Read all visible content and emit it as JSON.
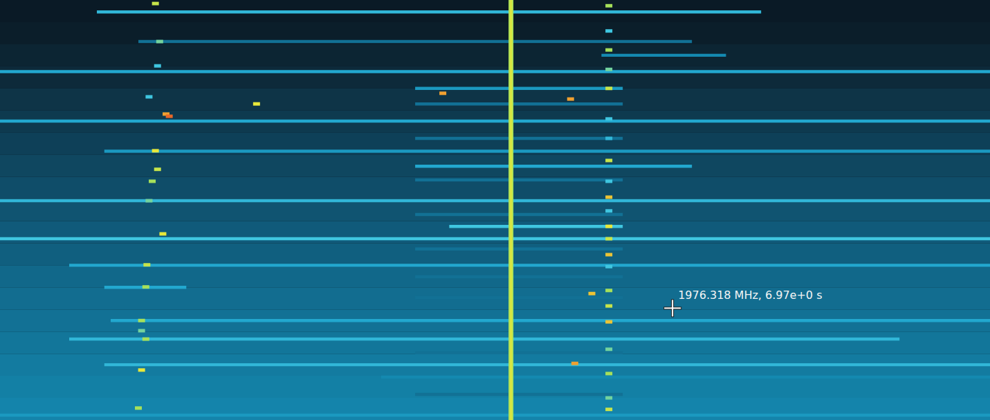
{
  "chart_data": {
    "type": "waterfall",
    "xlim": [
      1970,
      1979.3
    ],
    "ylim": [
      0,
      9.5
    ],
    "tick_labels": false,
    "background": {
      "t": [
        0,
        0.5,
        1.0,
        1.5,
        2.0,
        2.5,
        3.0,
        3.5,
        4.0,
        4.5,
        5.0,
        5.5,
        6.0,
        6.5,
        7.0,
        7.5,
        8.0,
        8.5,
        9.0
      ],
      "levels": [
        0.06,
        0.08,
        0.12,
        0.15,
        0.18,
        0.2,
        0.22,
        0.24,
        0.26,
        0.28,
        0.3,
        0.31,
        0.33,
        0.34,
        0.35,
        0.36,
        0.37,
        0.38,
        0.39
      ]
    },
    "carriers": [
      {
        "f": 1974.8,
        "level": 0.72
      }
    ],
    "bursts": [
      {
        "t": 0.27,
        "f": [
          1970.91,
          1977.15
        ],
        "level": 0.55
      },
      {
        "t": 0.94,
        "f": [
          1971.3,
          1976.5
        ],
        "level": 0.35
      },
      {
        "t": 1.25,
        "f": [
          1975.65,
          1976.82
        ],
        "level": 0.4
      },
      {
        "t": 1.62,
        "f": [
          1970,
          1979.3
        ],
        "level": 0.5
      },
      {
        "t": 2.0,
        "f": [
          1973.9,
          1975.85
        ],
        "level": 0.45
      },
      {
        "t": 2.35,
        "f": [
          1973.9,
          1975.85
        ],
        "level": 0.35
      },
      {
        "t": 2.74,
        "f": [
          1970,
          1979.3
        ],
        "level": 0.5
      },
      {
        "t": 3.13,
        "f": [
          1973.9,
          1975.85
        ],
        "level": 0.35
      },
      {
        "t": 3.42,
        "f": [
          1970.98,
          1979.3
        ],
        "level": 0.45
      },
      {
        "t": 3.76,
        "f": [
          1973.9,
          1976.5
        ],
        "level": 0.5
      },
      {
        "t": 4.07,
        "f": [
          1973.9,
          1975.85
        ],
        "level": 0.35
      },
      {
        "t": 4.54,
        "f": [
          1970,
          1979.3
        ],
        "level": 0.55
      },
      {
        "t": 4.85,
        "f": [
          1973.9,
          1975.85
        ],
        "level": 0.35
      },
      {
        "t": 5.12,
        "f": [
          1974.22,
          1975.85
        ],
        "level": 0.6
      },
      {
        "t": 5.4,
        "f": [
          1970,
          1979.3
        ],
        "level": 0.6
      },
      {
        "t": 5.63,
        "f": [
          1973.9,
          1975.85
        ],
        "level": 0.35
      },
      {
        "t": 6.0,
        "f": [
          1970.65,
          1979.3
        ],
        "level": 0.5
      },
      {
        "t": 6.26,
        "f": [
          1973.9,
          1975.85
        ],
        "level": 0.35
      },
      {
        "t": 6.5,
        "f": [
          1970.98,
          1971.75
        ],
        "level": 0.5
      },
      {
        "t": 6.73,
        "f": [
          1973.9,
          1975.85
        ],
        "level": 0.35
      },
      {
        "t": 7.25,
        "f": [
          1971.04,
          1979.3
        ],
        "level": 0.5
      },
      {
        "t": 7.67,
        "f": [
          1970.65,
          1978.45
        ],
        "level": 0.55
      },
      {
        "t": 7.98,
        "f": [
          1973.9,
          1975.85
        ],
        "level": 0.35
      },
      {
        "t": 8.25,
        "f": [
          1970.98,
          1979.3
        ],
        "level": 0.55
      },
      {
        "t": 8.53,
        "f": [
          1973.58,
          1979.3
        ],
        "level": 0.4
      },
      {
        "t": 8.92,
        "f": [
          1973.9,
          1975.85
        ],
        "level": 0.35
      },
      {
        "t": 9.39,
        "f": [
          1970,
          1979.3
        ],
        "level": 0.45
      }
    ],
    "points": [
      {
        "f": 1971.46,
        "t": 0.08,
        "level": 0.75
      },
      {
        "f": 1971.5,
        "t": 0.94,
        "level": 0.65
      },
      {
        "f": 1971.48,
        "t": 1.49,
        "level": 0.6
      },
      {
        "f": 1971.4,
        "t": 2.19,
        "level": 0.6
      },
      {
        "f": 1971.56,
        "t": 2.58,
        "level": 0.9
      },
      {
        "f": 1971.46,
        "t": 3.41,
        "level": 0.8
      },
      {
        "f": 1971.48,
        "t": 3.83,
        "level": 0.75
      },
      {
        "f": 1971.43,
        "t": 4.1,
        "level": 0.7
      },
      {
        "f": 1971.4,
        "t": 4.54,
        "level": 0.65
      },
      {
        "f": 1971.53,
        "t": 5.29,
        "level": 0.8
      },
      {
        "f": 1971.38,
        "t": 5.99,
        "level": 0.75
      },
      {
        "f": 1971.37,
        "t": 6.49,
        "level": 0.7
      },
      {
        "f": 1971.33,
        "t": 7.25,
        "level": 0.7
      },
      {
        "f": 1971.33,
        "t": 7.48,
        "level": 0.65
      },
      {
        "f": 1971.37,
        "t": 7.67,
        "level": 0.7
      },
      {
        "f": 1971.33,
        "t": 8.37,
        "level": 0.8
      },
      {
        "f": 1971.3,
        "t": 9.23,
        "level": 0.7
      },
      {
        "f": 1975.72,
        "t": 0.13,
        "level": 0.7
      },
      {
        "f": 1975.72,
        "t": 0.7,
        "level": 0.6
      },
      {
        "f": 1975.72,
        "t": 1.13,
        "level": 0.7
      },
      {
        "f": 1975.72,
        "t": 1.57,
        "level": 0.65
      },
      {
        "f": 1975.72,
        "t": 2.0,
        "level": 0.75
      },
      {
        "f": 1975.72,
        "t": 2.69,
        "level": 0.6
      },
      {
        "f": 1975.72,
        "t": 3.13,
        "level": 0.55
      },
      {
        "f": 1975.72,
        "t": 3.63,
        "level": 0.75
      },
      {
        "f": 1975.72,
        "t": 4.1,
        "level": 0.6
      },
      {
        "f": 1975.72,
        "t": 4.46,
        "level": 0.85
      },
      {
        "f": 1975.72,
        "t": 4.77,
        "level": 0.6
      },
      {
        "f": 1975.72,
        "t": 5.12,
        "level": 0.8
      },
      {
        "f": 1975.72,
        "t": 5.4,
        "level": 0.75
      },
      {
        "f": 1975.72,
        "t": 5.76,
        "level": 0.85
      },
      {
        "f": 1975.72,
        "t": 6.03,
        "level": 0.6
      },
      {
        "f": 1975.72,
        "t": 6.57,
        "level": 0.7
      },
      {
        "f": 1975.72,
        "t": 6.92,
        "level": 0.75
      },
      {
        "f": 1975.72,
        "t": 7.28,
        "level": 0.85
      },
      {
        "f": 1975.72,
        "t": 7.9,
        "level": 0.65
      },
      {
        "f": 1975.72,
        "t": 8.45,
        "level": 0.7
      },
      {
        "f": 1975.72,
        "t": 9.0,
        "level": 0.65
      },
      {
        "f": 1975.72,
        "t": 9.26,
        "level": 0.75
      },
      {
        "f": 1972.41,
        "t": 2.35,
        "level": 0.8
      },
      {
        "f": 1974.16,
        "t": 2.11,
        "level": 0.9
      },
      {
        "f": 1975.36,
        "t": 2.24,
        "level": 0.9
      },
      {
        "f": 1975.56,
        "t": 6.64,
        "level": 0.85
      },
      {
        "f": 1975.4,
        "t": 8.22,
        "level": 0.9
      },
      {
        "f": 1971.59,
        "t": 2.63,
        "level": 0.95
      }
    ],
    "annotations": [
      {
        "x": 1976.318,
        "y": 6.97,
        "text": "1976.318 MHz, 6.97e+0 s"
      }
    ]
  }
}
